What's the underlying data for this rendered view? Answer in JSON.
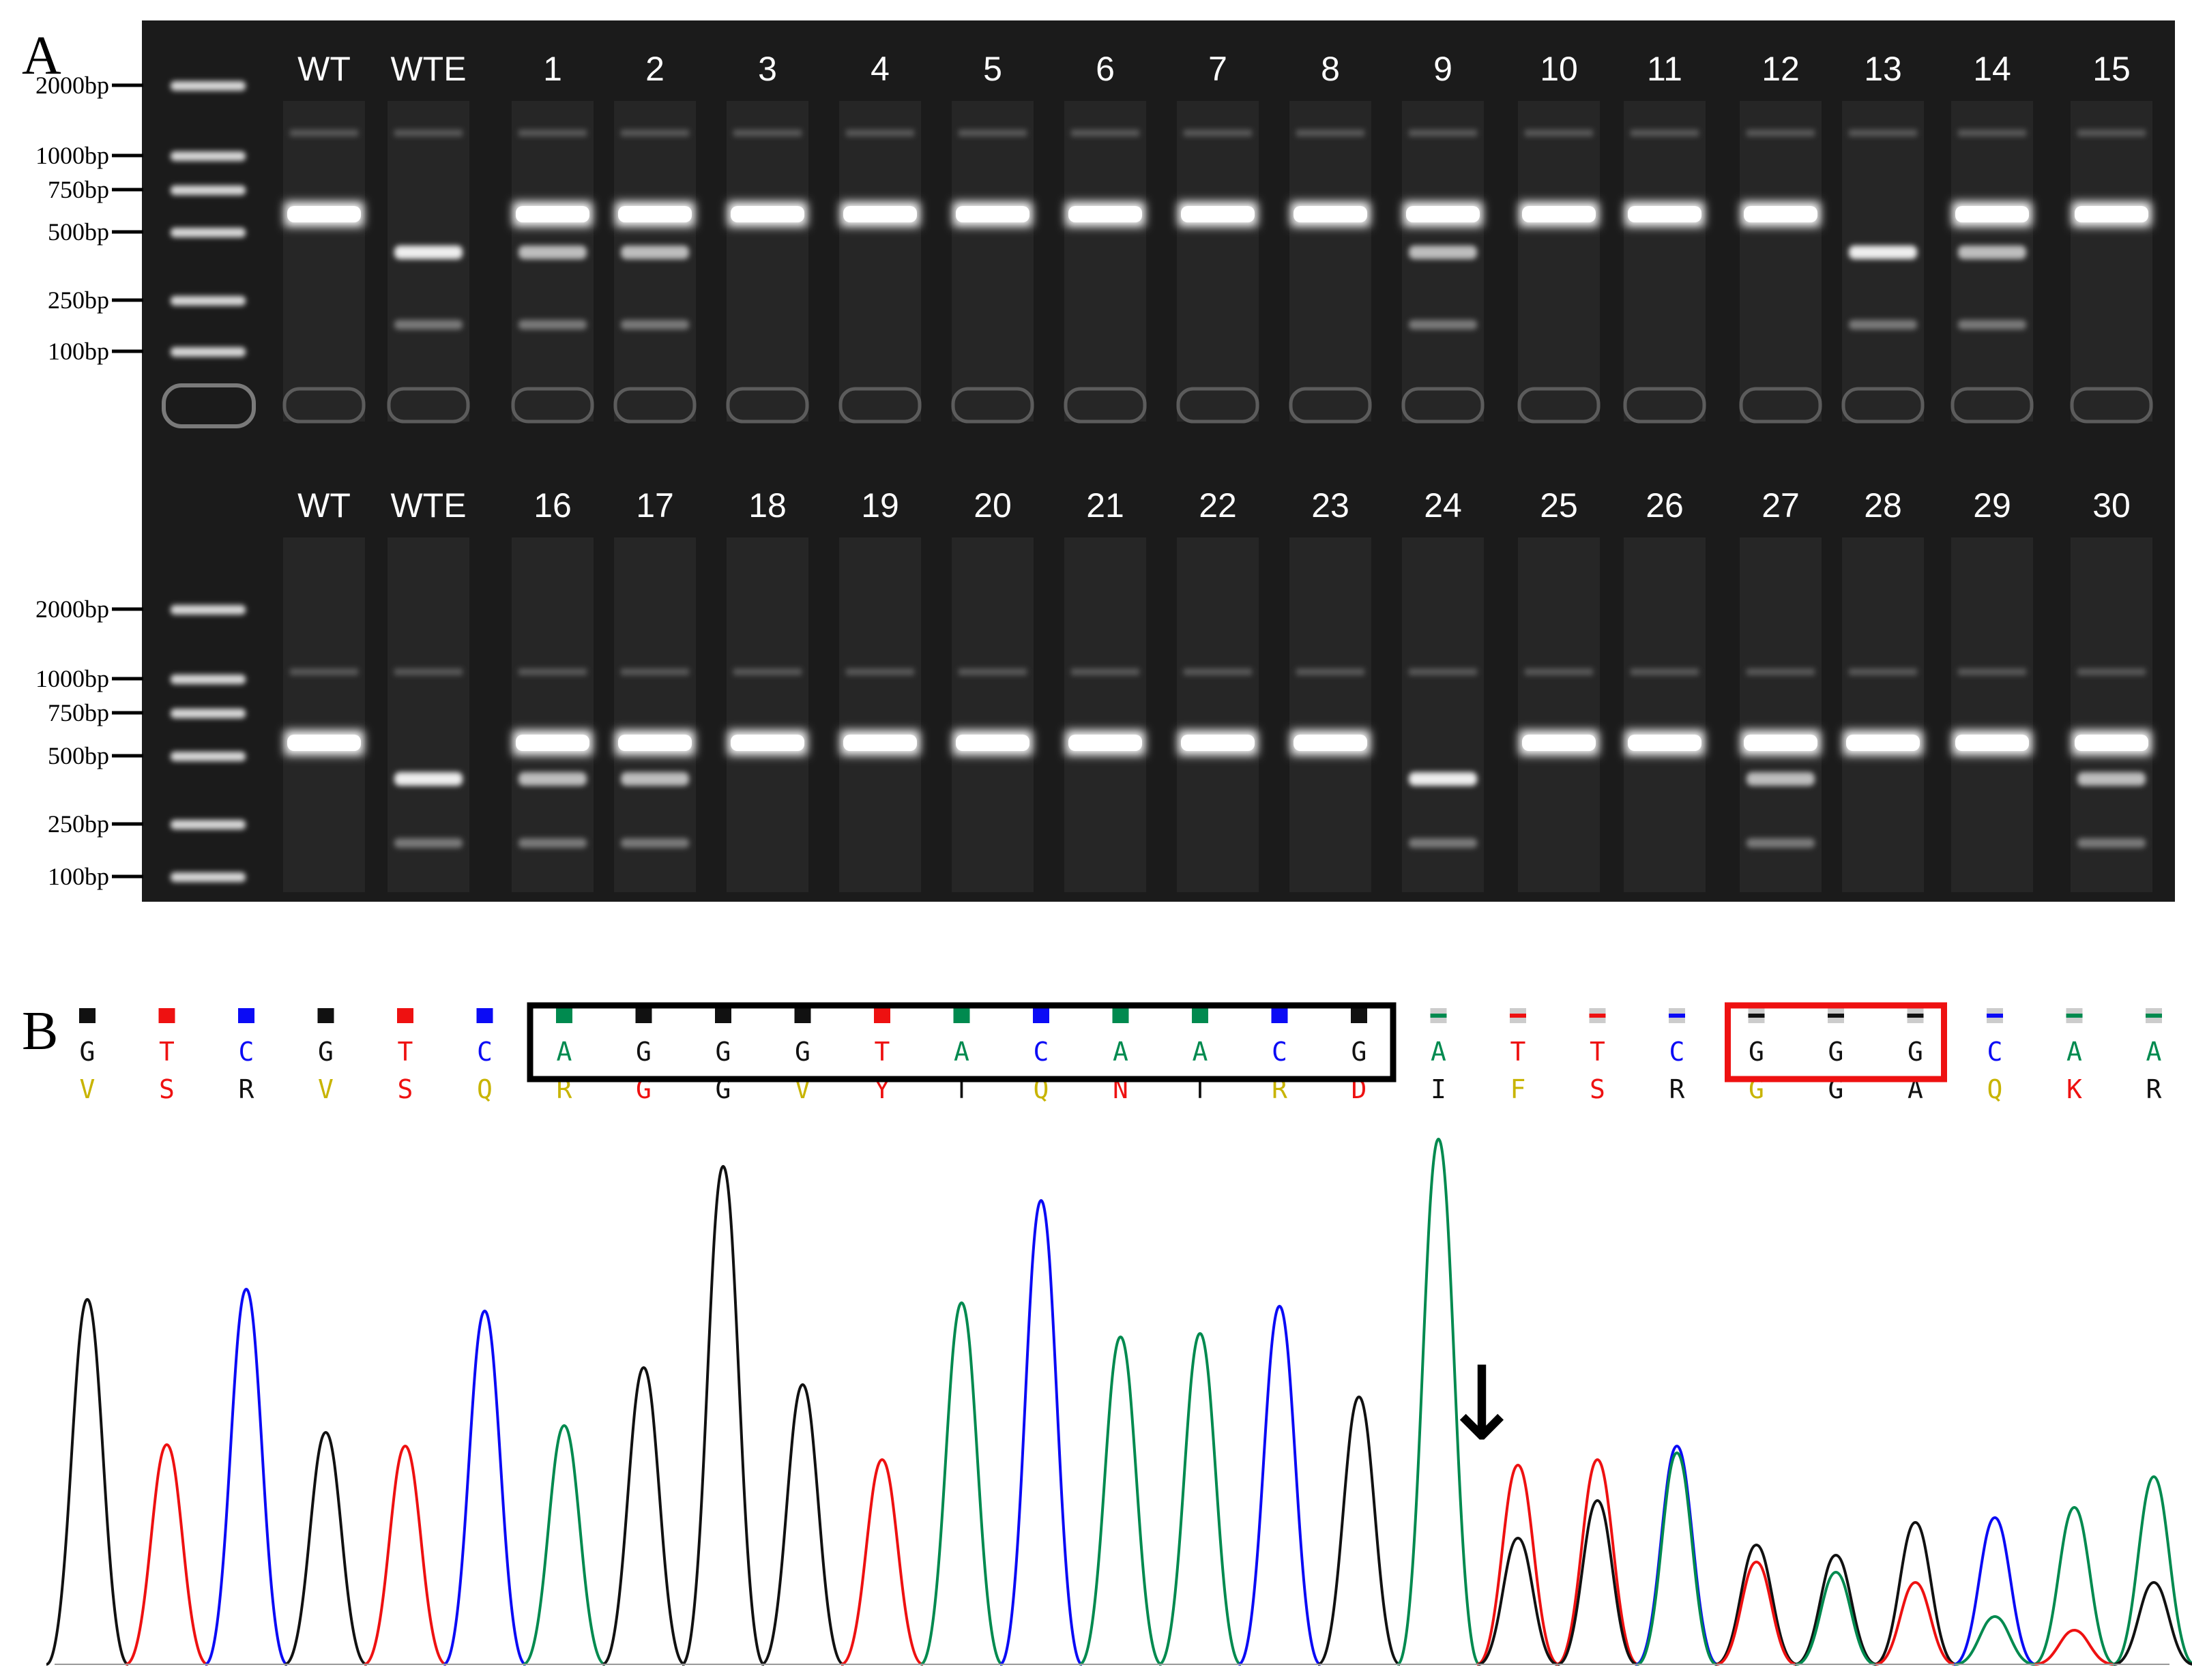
{
  "panel_a": {
    "label": "A",
    "top_row": {
      "lanes": [
        "WT",
        "WTE",
        "1",
        "2",
        "3",
        "4",
        "5",
        "6",
        "7",
        "8",
        "9",
        "10",
        "11",
        "12",
        "13",
        "14",
        "15"
      ],
      "markers": [
        "2000bp",
        "1000bp",
        "750bp",
        "500bp",
        "250bp",
        "100bp"
      ]
    },
    "bottom_row": {
      "lanes": [
        "WT",
        "WTE",
        "16",
        "17",
        "18",
        "19",
        "20",
        "21",
        "22",
        "23",
        "24",
        "25",
        "26",
        "27",
        "28",
        "29",
        "30"
      ],
      "markers": [
        "2000bp",
        "1000bp",
        "750bp",
        "500bp",
        "250bp",
        "100bp"
      ]
    },
    "cleaved_lanes": [
      "WTE",
      "1",
      "2",
      "9",
      "13",
      "14",
      "16",
      "17",
      "24",
      "27",
      "30"
    ]
  },
  "panel_b": {
    "label": "B",
    "bases": [
      "G",
      "T",
      "C",
      "G",
      "T",
      "C",
      "A",
      "G",
      "G",
      "G",
      "T",
      "A",
      "C",
      "A",
      "A",
      "C",
      "G",
      "A",
      "T",
      "T",
      "C",
      "G",
      "G",
      "G",
      "C",
      "A",
      "A"
    ],
    "amino_acids": [
      "V",
      "S",
      "R",
      "V",
      "S",
      "Q",
      "R",
      "G",
      "G",
      "V",
      "Y",
      "T",
      "Q",
      "N",
      "T",
      "R",
      "D",
      "I",
      "F",
      "S",
      "R",
      "G",
      "G",
      "A",
      "Q",
      "K",
      "R"
    ],
    "black_box_bases": [
      6,
      16
    ],
    "red_box_bases": [
      21,
      23
    ],
    "arrow_symbol": "↓"
  },
  "colors": {
    "A": "#008a4f",
    "C": "#0b0bf5",
    "G": "#111111",
    "T": "#ee1111",
    "aa_yellow": "#c8b400",
    "aa_red": "#ee1111",
    "aa_black": "#111111",
    "box_black": "#000000",
    "box_red": "#ee1111",
    "gel_bg": "#1b1b1b"
  }
}
